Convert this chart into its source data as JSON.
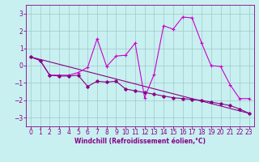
{
  "xlabel": "Windchill (Refroidissement éolien,°C)",
  "bg_color": "#c8f0f0",
  "grid_color": "#a0c8c8",
  "line_color1": "#cc00cc",
  "line_color2": "#880088",
  "text_color": "#880088",
  "xlim": [
    -0.5,
    23.5
  ],
  "ylim": [
    -3.5,
    3.5
  ],
  "yticks": [
    -3,
    -2,
    -1,
    0,
    1,
    2,
    3
  ],
  "xticks": [
    0,
    1,
    2,
    3,
    4,
    5,
    6,
    7,
    8,
    9,
    10,
    11,
    12,
    13,
    14,
    15,
    16,
    17,
    18,
    19,
    20,
    21,
    22,
    23
  ],
  "series1_x": [
    0,
    1,
    2,
    3,
    4,
    5,
    6,
    7,
    8,
    9,
    10,
    11,
    12,
    13,
    14,
    15,
    16,
    17,
    18,
    19,
    20,
    21,
    22,
    23
  ],
  "series1_y": [
    0.5,
    0.3,
    -0.55,
    -0.55,
    -0.55,
    -0.4,
    -0.1,
    1.55,
    -0.05,
    0.55,
    0.6,
    1.3,
    -1.85,
    -0.5,
    2.3,
    2.1,
    2.8,
    2.75,
    1.3,
    0.0,
    -0.05,
    -1.1,
    -1.9,
    -1.9
  ],
  "series2_x": [
    0,
    1,
    2,
    3,
    4,
    5,
    6,
    7,
    8,
    9,
    10,
    11,
    12,
    13,
    14,
    15,
    16,
    17,
    18,
    19,
    20,
    21,
    22,
    23
  ],
  "series2_y": [
    0.5,
    0.3,
    -0.55,
    -0.6,
    -0.6,
    -0.55,
    -1.2,
    -0.9,
    -0.95,
    -0.9,
    -1.35,
    -1.45,
    -1.55,
    -1.65,
    -1.75,
    -1.85,
    -1.9,
    -1.95,
    -2.0,
    -2.1,
    -2.2,
    -2.3,
    -2.5,
    -2.75
  ],
  "series3_x": [
    0,
    23
  ],
  "series3_y": [
    0.5,
    -2.75
  ],
  "tick_fontsize": 5.5,
  "xlabel_fontsize": 5.5
}
